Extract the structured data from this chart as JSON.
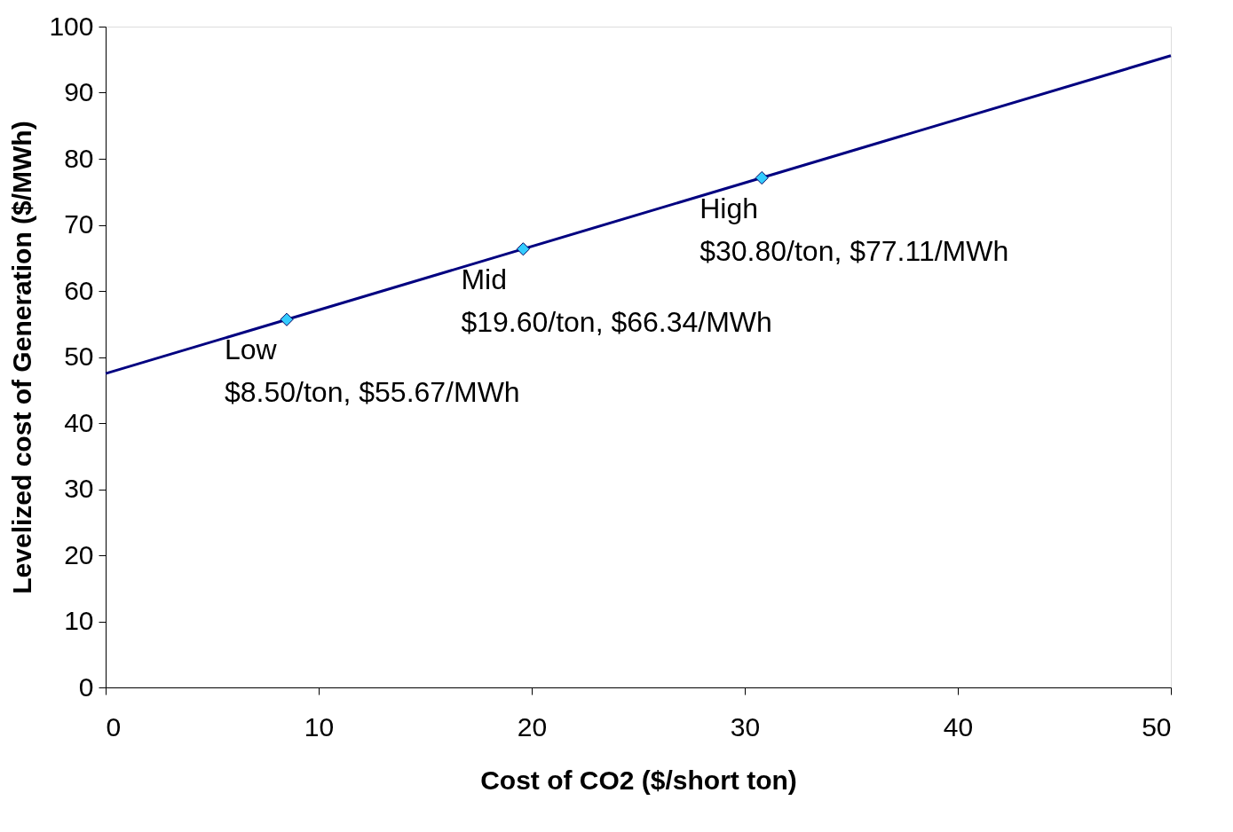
{
  "chart_data": {
    "type": "line",
    "xlabel": "Cost of CO2 ($/short ton)",
    "ylabel": "Levelized cost of Generation ($/MWh)",
    "series": [
      {
        "type": "line",
        "color": "#000080",
        "x": [
          0,
          50
        ],
        "values": [
          47.5,
          95.6
        ],
        "marker": "none"
      },
      {
        "type": "scatter",
        "color": "#33ccff",
        "x": [
          8.5,
          19.6,
          30.8
        ],
        "values": [
          55.67,
          66.34,
          77.11
        ],
        "marker": "diamond"
      }
    ],
    "annotations": [
      {
        "text": "Low\n$8.50/ton, $55.67/MWh",
        "x": 8.5,
        "y": 55.67
      },
      {
        "text": "Mid\n$19.60/ton, $66.34/MWh",
        "x": 19.6,
        "y": 66.34
      },
      {
        "text": "High\n$30.80/ton, $77.11/MWh",
        "x": 30.8,
        "y": 77.11
      }
    ],
    "xlim": [
      0,
      50
    ],
    "xticks": [
      0,
      10,
      20,
      30,
      40,
      50
    ],
    "ylim": [
      0,
      100
    ],
    "yticks": [
      0,
      10,
      20,
      30,
      40,
      50,
      60,
      70,
      80,
      90,
      100
    ],
    "grid": false,
    "legend": false
  }
}
